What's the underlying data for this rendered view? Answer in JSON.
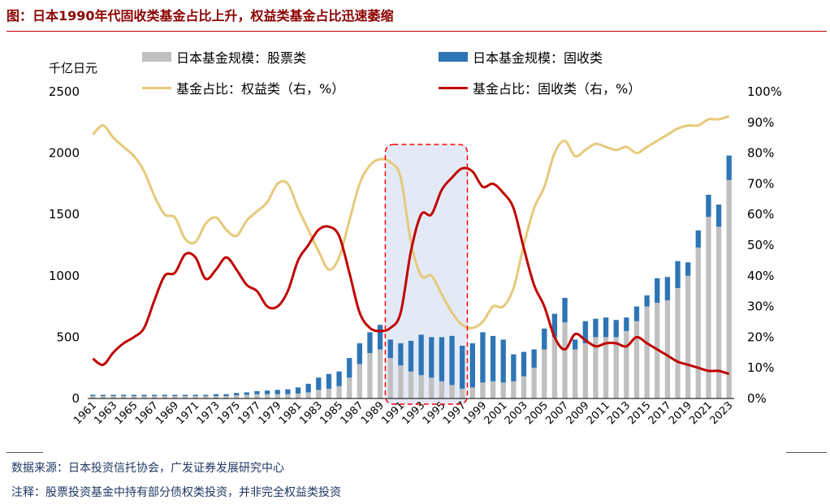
{
  "title": "图：日本1990年代固收类基金占比上升，权益类基金占比迅速萎缩",
  "unit_label": "千亿日元",
  "footnotes": [
    "数据来源：日本投资信托协会，广发证券发展研究中心",
    "注释：股票投资基金中持有部分债权类投资，并非完全权益类投资"
  ],
  "colors": {
    "stock_bar": "#c0c0c0",
    "bond_bar": "#2e75b6",
    "equity_line": "#e6c97a",
    "fixed_line": "#c00000",
    "highlight_fill": "#dae3f3",
    "highlight_border": "#ff0000"
  },
  "chart_data": {
    "type": "bar",
    "years": [
      1961,
      1962,
      1963,
      1964,
      1965,
      1966,
      1967,
      1968,
      1969,
      1970,
      1971,
      1972,
      1973,
      1974,
      1975,
      1976,
      1977,
      1978,
      1979,
      1980,
      1981,
      1982,
      1983,
      1984,
      1985,
      1986,
      1987,
      1988,
      1989,
      1990,
      1991,
      1992,
      1993,
      1994,
      1995,
      1996,
      1997,
      1998,
      1999,
      2000,
      2001,
      2002,
      2003,
      2004,
      2005,
      2006,
      2007,
      2008,
      2009,
      2010,
      2011,
      2012,
      2013,
      2014,
      2015,
      2016,
      2017,
      2018,
      2019,
      2020,
      2021,
      2022,
      2023
    ],
    "x_tick_labels": [
      "1961",
      "1963",
      "1965",
      "1967",
      "1969",
      "1971",
      "1973",
      "1975",
      "1977",
      "1979",
      "1981",
      "1983",
      "1985",
      "1987",
      "1989",
      "1991",
      "1993",
      "1995",
      "1997",
      "1999",
      "2001",
      "2003",
      "2005",
      "2007",
      "2009",
      "2011",
      "2013",
      "2015",
      "2017",
      "2019",
      "2021",
      "2023"
    ],
    "series": [
      {
        "name": "日本基金规模：股票类",
        "axis": "left",
        "kind": "bar-stack",
        "values": [
          20,
          20,
          20,
          20,
          20,
          20,
          20,
          20,
          20,
          20,
          20,
          20,
          20,
          20,
          25,
          30,
          35,
          35,
          35,
          35,
          40,
          50,
          70,
          80,
          100,
          170,
          280,
          370,
          400,
          330,
          270,
          220,
          190,
          170,
          140,
          110,
          80,
          90,
          130,
          140,
          130,
          140,
          180,
          250,
          400,
          500,
          620,
          400,
          450,
          500,
          500,
          500,
          550,
          630,
          750,
          780,
          800,
          900,
          1000,
          1230,
          1480,
          1400,
          1780
        ]
      },
      {
        "name": "日本基金规模：固收类",
        "axis": "left",
        "kind": "bar-stack",
        "values": [
          10,
          10,
          10,
          10,
          10,
          10,
          10,
          10,
          10,
          10,
          10,
          10,
          15,
          15,
          20,
          20,
          25,
          30,
          35,
          40,
          50,
          70,
          100,
          120,
          120,
          160,
          170,
          170,
          200,
          150,
          180,
          250,
          330,
          330,
          360,
          400,
          350,
          360,
          410,
          370,
          350,
          220,
          200,
          150,
          170,
          190,
          200,
          80,
          180,
          150,
          160,
          140,
          110,
          120,
          90,
          200,
          190,
          220,
          110,
          140,
          180,
          180,
          200
        ]
      },
      {
        "name": "基金占比：权益类（右，%）",
        "axis": "right",
        "kind": "line",
        "values": [
          86,
          89,
          85,
          82,
          79,
          74,
          66,
          60,
          59,
          52,
          51,
          57,
          59,
          55,
          53,
          58,
          61,
          64,
          70,
          70,
          62,
          55,
          48,
          42,
          46,
          58,
          70,
          76,
          78,
          77,
          72,
          51,
          40,
          40,
          34,
          28,
          24,
          23,
          25,
          30,
          30,
          36,
          50,
          62,
          69,
          80,
          84,
          79,
          81,
          83,
          82,
          81,
          82,
          80,
          82,
          84,
          86,
          88,
          89,
          89,
          91,
          91,
          92
        ]
      },
      {
        "name": "基金占比：固收类（右，%）",
        "axis": "right",
        "kind": "line",
        "values": [
          13,
          11,
          15,
          18,
          20,
          23,
          32,
          40,
          41,
          47,
          46,
          39,
          42,
          46,
          42,
          37,
          35,
          30,
          30,
          35,
          45,
          50,
          55,
          56,
          53,
          41,
          28,
          23,
          22,
          23,
          28,
          48,
          60,
          60,
          68,
          72,
          75,
          74,
          69,
          70,
          67,
          62,
          49,
          37,
          30,
          20,
          16,
          21,
          19,
          17,
          18,
          18,
          17,
          20,
          18,
          16,
          14,
          12,
          11,
          10,
          9,
          9,
          8
        ]
      }
    ],
    "y_left": {
      "min": 0,
      "max": 2500,
      "ticks": [
        0,
        500,
        1000,
        1500,
        2000,
        2500
      ]
    },
    "y_right": {
      "min": 0,
      "max": 100,
      "ticks": [
        "0%",
        "10%",
        "20%",
        "30%",
        "40%",
        "50%",
        "60%",
        "70%",
        "80%",
        "90%",
        "100%"
      ]
    },
    "highlight_range": [
      1990,
      1997
    ],
    "legend_position": "top"
  }
}
